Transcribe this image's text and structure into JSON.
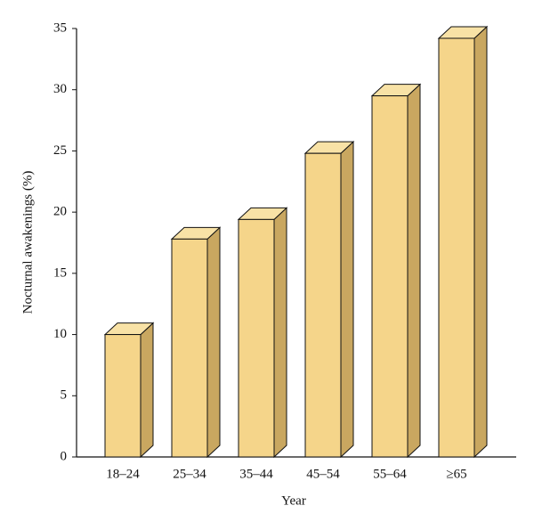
{
  "chart_data": {
    "type": "bar3d",
    "x_label": "Year",
    "y_label": "Nocturnal awakenings (%)",
    "categories": [
      "18–24",
      "25–34",
      "35–44",
      "45–54",
      "55–64",
      "≥65"
    ],
    "values": [
      10,
      17.8,
      19.4,
      24.8,
      29.5,
      34.2
    ],
    "color": "#f5d58a",
    "ylim": [
      0,
      35
    ],
    "yticks": [
      0,
      5,
      10,
      15,
      20,
      25,
      30,
      35
    ]
  }
}
